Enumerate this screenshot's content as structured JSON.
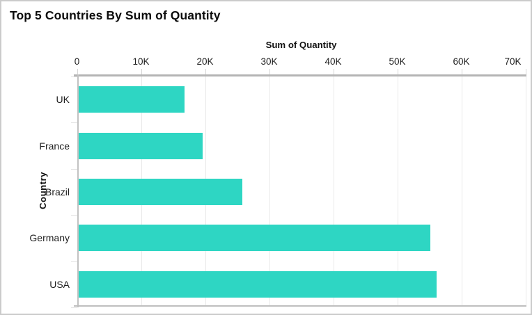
{
  "chart_data": {
    "type": "bar",
    "orientation": "horizontal",
    "title": "Top 5 Countries By Sum of Quantity",
    "xlabel": "Sum of Quantity",
    "ylabel": "Country",
    "categories": [
      "UK",
      "France",
      "Brazil",
      "Germany",
      "USA"
    ],
    "values": [
      16600,
      19500,
      25700,
      55000,
      56000
    ],
    "xlim": [
      0,
      70000
    ],
    "xticks": [
      {
        "value": 0,
        "label": "0"
      },
      {
        "value": 10000,
        "label": "10K"
      },
      {
        "value": 20000,
        "label": "20K"
      },
      {
        "value": 30000,
        "label": "30K"
      },
      {
        "value": 40000,
        "label": "40K"
      },
      {
        "value": 50000,
        "label": "50K"
      },
      {
        "value": 60000,
        "label": "60K"
      },
      {
        "value": 70000,
        "label": "70K"
      }
    ],
    "grid": "vertical",
    "legend": "none",
    "bar_color": "#2ed6c3",
    "background_color": "#ffffff"
  }
}
